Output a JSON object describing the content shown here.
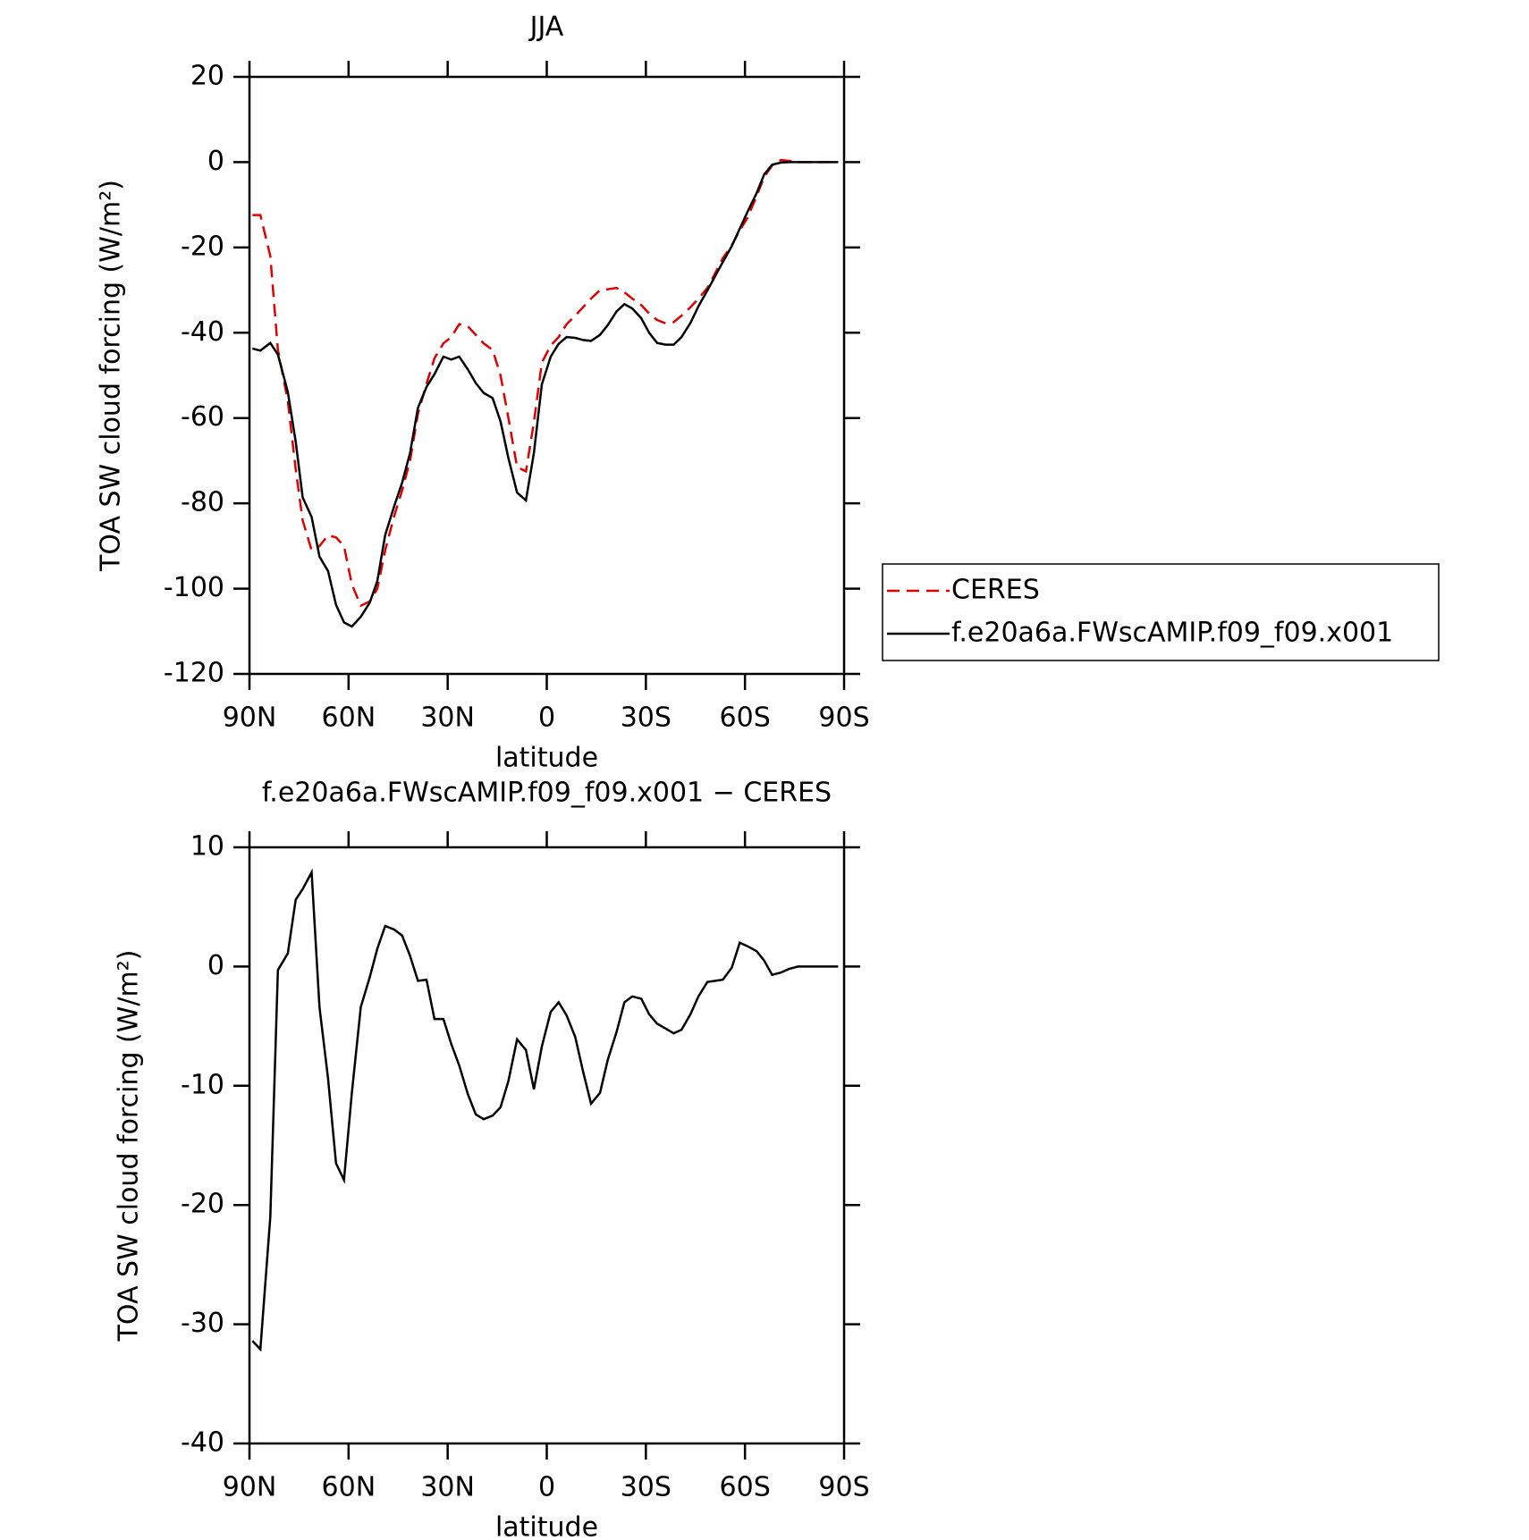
{
  "chart_data": [
    {
      "type": "line",
      "title": "JJA",
      "xlabel": "latitude",
      "ylabel": "TOA SW cloud forcing (W/m²)",
      "x": [
        89.1,
        86.7,
        83.7,
        81.4,
        78.4,
        76.0,
        73.9,
        71.2,
        68.8,
        66.2,
        63.8,
        61.4,
        59.0,
        56.3,
        53.6,
        51.3,
        48.9,
        46.2,
        43.8,
        41.4,
        39.0,
        36.4,
        34.0,
        31.3,
        28.9,
        26.5,
        23.9,
        21.5,
        19.1,
        16.4,
        14.0,
        11.6,
        9.0,
        6.3,
        3.9,
        1.5,
        -1.2,
        -3.6,
        -6.0,
        -8.6,
        -11.0,
        -13.4,
        -16.1,
        -18.5,
        -21.1,
        -23.5,
        -25.9,
        -28.6,
        -31.0,
        -33.4,
        -36.0,
        -38.4,
        -40.8,
        -43.5,
        -45.9,
        -48.6,
        -51.0,
        -53.3,
        -56.0,
        -58.4,
        -60.8,
        -63.5,
        -65.8,
        -68.2,
        -70.9,
        -73.3,
        -76.0,
        -78.4,
        -80.7,
        -83.4,
        -85.8,
        -88.2
      ],
      "series": [
        {
          "name": "CERES",
          "color": "#e00000",
          "dash": true,
          "values": [
            -12.4,
            -12.4,
            -22,
            -44,
            -56,
            -72,
            -84,
            -91,
            -90,
            -87.5,
            -88,
            -90,
            -99,
            -104,
            -103,
            -100,
            -91,
            -83,
            -77,
            -70,
            -59,
            -52,
            -46,
            -42.5,
            -41,
            -38,
            -38.5,
            -40.5,
            -42.5,
            -44,
            -50,
            -60,
            -71.5,
            -72.5,
            -61,
            -47,
            -43,
            -41,
            -38,
            -36,
            -34,
            -32,
            -30,
            -29.8,
            -29.5,
            -30.5,
            -32,
            -33.5,
            -35.5,
            -37,
            -37.8,
            -37.5,
            -36,
            -34,
            -32,
            -29.5,
            -26,
            -22.5,
            -19.5,
            -16,
            -13,
            -8,
            -3.5,
            -0.8,
            0.5,
            0.3,
            0,
            0,
            0,
            0,
            0,
            0
          ]
        },
        {
          "name": "f.e20a6a.FWscAMIP.f09_f09.x001",
          "color": "#000000",
          "dash": false,
          "values": [
            -43.7,
            -44.2,
            -42.4,
            -45.1,
            -53.9,
            -65.5,
            -78.6,
            -83.2,
            -92.5,
            -95.9,
            -103.8,
            -107.9,
            -108.9,
            -106.6,
            -103.3,
            -98.2,
            -87.4,
            -80.7,
            -75.2,
            -68.2,
            -57.6,
            -52.7,
            -49.7,
            -45.6,
            -46.3,
            -45.6,
            -48.6,
            -51.8,
            -54.1,
            -55.3,
            -60.8,
            -69.4,
            -77.5,
            -79.3,
            -68.2,
            -52.1,
            -45.6,
            -42.6,
            -41.0,
            -41.2,
            -41.7,
            -41.9,
            -40.5,
            -38.2,
            -35.0,
            -33.3,
            -34.3,
            -36.6,
            -40.0,
            -42.4,
            -42.8,
            -42.8,
            -41.0,
            -37.7,
            -33.8,
            -30.1,
            -26.7,
            -23.4,
            -19.7,
            -15.6,
            -11.6,
            -7.3,
            -2.9,
            -0.6,
            -0.1,
            0,
            0,
            0,
            0,
            0,
            0,
            0
          ]
        }
      ],
      "xlim": [
        90,
        -90
      ],
      "xticks": [
        {
          "value": 90,
          "label": "90N"
        },
        {
          "value": 60,
          "label": "60N"
        },
        {
          "value": 30,
          "label": "30N"
        },
        0,
        {
          "value": -30,
          "label": "30S"
        },
        {
          "value": -60,
          "label": "60S"
        },
        {
          "value": -90,
          "label": "90S"
        }
      ],
      "ylim": [
        -120,
        20
      ],
      "yticks": [
        -120,
        -100,
        -80,
        -60,
        -40,
        -20,
        0,
        20
      ],
      "legend": "right"
    },
    {
      "type": "line",
      "title": "f.e20a6a.FWscAMIP.f09_f09.x001 − CERES",
      "xlabel": "latitude",
      "ylabel": "TOA SW cloud forcing (W/m²)",
      "x": [
        89.1,
        86.7,
        83.7,
        81.4,
        78.4,
        76.0,
        73.9,
        71.2,
        68.8,
        66.2,
        63.8,
        61.4,
        59.0,
        56.3,
        53.6,
        51.3,
        48.9,
        46.2,
        43.8,
        41.4,
        39.0,
        36.4,
        34.0,
        31.3,
        28.9,
        26.5,
        23.9,
        21.5,
        19.1,
        16.4,
        14.0,
        11.6,
        9.0,
        6.3,
        3.9,
        1.5,
        -1.2,
        -3.6,
        -6.0,
        -8.6,
        -11.0,
        -13.4,
        -16.1,
        -18.5,
        -21.1,
        -23.5,
        -25.9,
        -28.6,
        -31.0,
        -33.4,
        -36.0,
        -38.4,
        -40.8,
        -43.5,
        -45.9,
        -48.6,
        -51.0,
        -53.3,
        -56.0,
        -58.4,
        -60.8,
        -63.5,
        -65.8,
        -68.2,
        -70.9,
        -73.3,
        -76.0,
        -78.4,
        -80.7,
        -83.4,
        -85.8,
        -88.2
      ],
      "values": [
        -31.4,
        -32.1,
        -21.0,
        -0.3,
        1.1,
        5.6,
        6.5,
        7.9,
        -3.4,
        -9.4,
        -16.5,
        -17.9,
        -10.6,
        -3.4,
        -0.9,
        1.5,
        3.4,
        3.1,
        2.6,
        0.9,
        -1.2,
        -1.1,
        -4.4,
        -4.4,
        -6.5,
        -8.3,
        -10.7,
        -12.4,
        -12.8,
        -12.5,
        -11.8,
        -9.6,
        -6.1,
        -7.0,
        -10.3,
        -6.7,
        -3.8,
        -3.0,
        -4.1,
        -5.9,
        -8.8,
        -11.5,
        -10.6,
        -7.8,
        -5.5,
        -3.0,
        -2.5,
        -2.7,
        -4.0,
        -4.8,
        -5.2,
        -5.6,
        -5.3,
        -4.0,
        -2.5,
        -1.3,
        -1.2,
        -1.1,
        -0.1,
        2.0,
        1.7,
        1.3,
        0.5,
        -0.7,
        -0.5,
        -0.2,
        0,
        0,
        0,
        0,
        0,
        0
      ],
      "color": "#000000",
      "xlim": [
        90,
        -90
      ],
      "xticks": [
        {
          "value": 90,
          "label": "90N"
        },
        {
          "value": 60,
          "label": "60N"
        },
        {
          "value": 30,
          "label": "30N"
        },
        0,
        {
          "value": -30,
          "label": "30S"
        },
        {
          "value": -60,
          "label": "60S"
        },
        {
          "value": -90,
          "label": "90S"
        }
      ],
      "ylim": [
        -40,
        10
      ],
      "yticks": [
        -40,
        -30,
        -20,
        -10,
        0,
        10
      ]
    }
  ]
}
